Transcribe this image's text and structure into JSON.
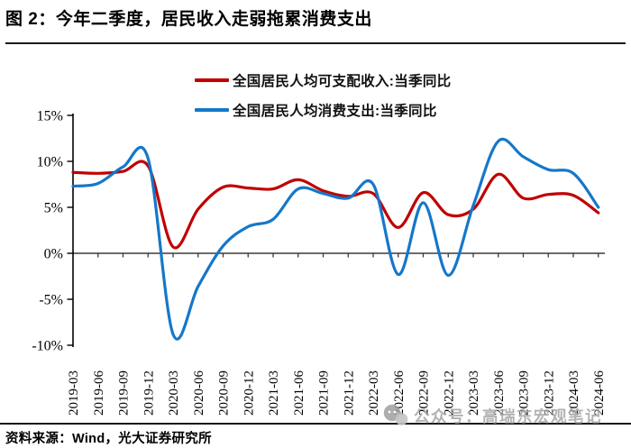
{
  "figure": {
    "title": "图 2：今年二季度，居民收入走弱拖累消费支出"
  },
  "chart_data": {
    "type": "line",
    "title": "图 2：今年二季度，居民收入走弱拖累消费支出",
    "categories": [
      "2019-03",
      "2019-06",
      "2019-09",
      "2019-12",
      "2020-03",
      "2020-06",
      "2020-09",
      "2020-12",
      "2021-03",
      "2021-06",
      "2021-09",
      "2021-12",
      "2022-03",
      "2022-06",
      "2022-09",
      "2022-12",
      "2023-03",
      "2023-06",
      "2023-09",
      "2023-12",
      "2024-03",
      "2024-06"
    ],
    "series": [
      {
        "name": "全国居民人均可支配收入:当季同比",
        "color": "#c00000",
        "values": [
          8.8,
          8.7,
          8.9,
          9.5,
          0.7,
          4.8,
          7.2,
          7.1,
          7.0,
          8.0,
          6.8,
          6.2,
          6.5,
          2.8,
          6.6,
          4.2,
          4.8,
          8.6,
          6.0,
          6.4,
          6.3,
          4.4
        ]
      },
      {
        "name": "全国居民人均消费支出:当季同比",
        "color": "#1577c9",
        "values": [
          7.3,
          7.6,
          9.4,
          10.3,
          -8.8,
          -3.6,
          0.8,
          2.9,
          3.7,
          7.0,
          6.5,
          6.0,
          7.5,
          -2.3,
          5.5,
          -2.4,
          5.2,
          12.2,
          10.5,
          9.1,
          8.7,
          5.0
        ]
      }
    ],
    "ytick_values": [
      15,
      10,
      5,
      0,
      -5,
      -10
    ],
    "ytick_labels": [
      "15%",
      "10%",
      "5%",
      "0%",
      "-5%",
      "-10%"
    ],
    "ylim": [
      -10,
      15
    ],
    "xlabel": "",
    "ylabel": "",
    "grid": false,
    "legend_position": "top"
  },
  "footer": {
    "source": "资料来源：Wind，光大证券研究所"
  },
  "watermark": {
    "icon": "wechat-official-account-icon",
    "text": "公众号：高瑞东宏观笔记"
  }
}
